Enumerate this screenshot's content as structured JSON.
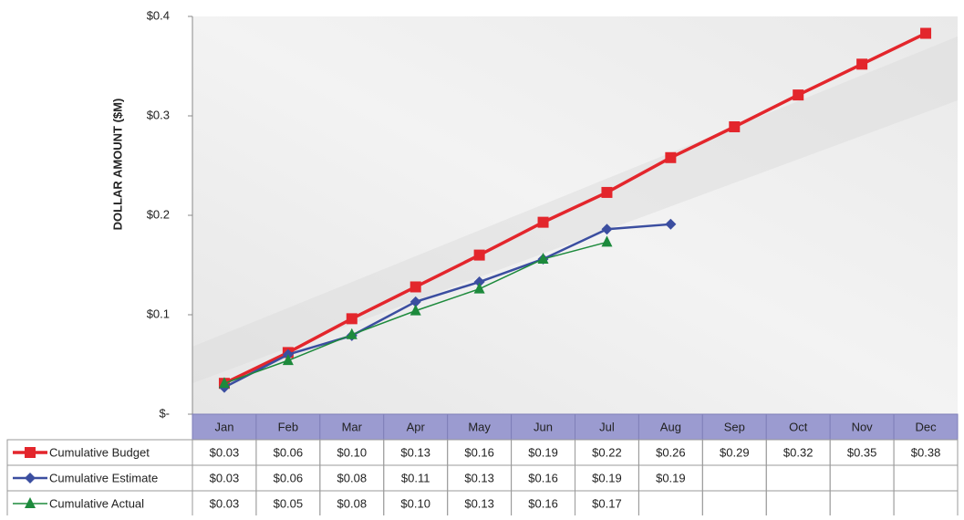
{
  "chart_data": {
    "type": "line",
    "y_axis_label": "DOLLAR AMOUNT ($M)",
    "categories": [
      "Jan",
      "Feb",
      "Mar",
      "Apr",
      "May",
      "Jun",
      "Jul",
      "Aug",
      "Sep",
      "Oct",
      "Nov",
      "Dec"
    ],
    "series": [
      {
        "name": "Cumulative Budget",
        "color": "#e3262c",
        "marker": "square",
        "values": [
          0.031,
          0.062,
          0.096,
          0.128,
          0.16,
          0.193,
          0.223,
          0.258,
          0.289,
          0.321,
          0.352,
          0.383
        ],
        "value_labels": [
          "$0.03",
          "$0.06",
          "$0.10",
          "$0.13",
          "$0.16",
          "$0.19",
          "$0.22",
          "$0.26",
          "$0.29",
          "$0.32",
          "$0.35",
          "$0.38"
        ]
      },
      {
        "name": "Cumulative Estimate",
        "color": "#3b4ea0",
        "marker": "diamond",
        "values": [
          0.027,
          0.06,
          0.079,
          0.113,
          0.133,
          0.156,
          0.186,
          0.191,
          null,
          null,
          null,
          null
        ],
        "value_labels": [
          "$0.03",
          "$0.06",
          "$0.08",
          "$0.11",
          "$0.13",
          "$0.16",
          "$0.19",
          "$0.19",
          null,
          null,
          null,
          null
        ]
      },
      {
        "name": "Cumulative Actual",
        "color": "#1d8a3c",
        "marker": "triangle",
        "values": [
          0.031,
          0.054,
          0.08,
          0.104,
          0.126,
          0.156,
          0.173,
          null,
          null,
          null,
          null,
          null
        ],
        "value_labels": [
          "$0.03",
          "$0.05",
          "$0.08",
          "$0.10",
          "$0.13",
          "$0.16",
          "$0.17",
          null,
          null,
          null,
          null,
          null
        ]
      }
    ],
    "ylim": [
      0,
      0.4
    ],
    "yticks": [
      {
        "value": 0,
        "label": "$-"
      },
      {
        "value": 0.1,
        "label": "$0.1"
      },
      {
        "value": 0.2,
        "label": "$0.2"
      },
      {
        "value": 0.3,
        "label": "$0.3"
      },
      {
        "value": 0.4,
        "label": "$0.4"
      }
    ]
  }
}
